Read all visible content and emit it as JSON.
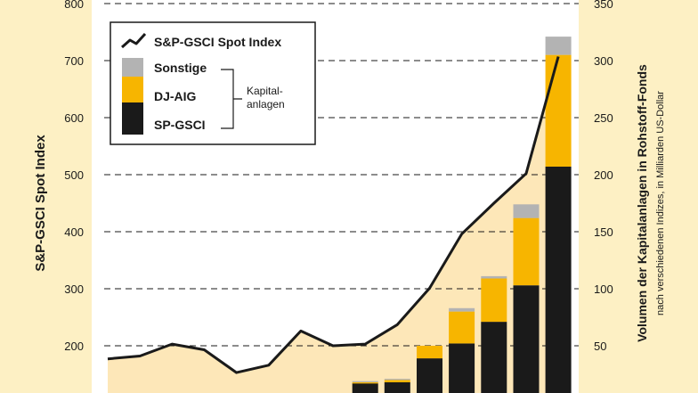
{
  "colors": {
    "page_bg": "#fdf0c4",
    "plot_bg": "#ffffff",
    "area_fill": "#fde7b8",
    "sonstige": "#b3b3b3",
    "dj_aig": "#f7b500",
    "sp_gsci": "#1a1a1a",
    "line": "#1a1a1a"
  },
  "chart_data": {
    "type": "bar",
    "left_axis": {
      "label": "S&P-GSCI Spot Index",
      "ticks": [
        "200",
        "300",
        "400",
        "500",
        "600",
        "700",
        "800"
      ],
      "range": [
        144,
        800
      ]
    },
    "right_axis": {
      "label": "Volumen der Kapitalanlagen in Rohstoff-Fonds",
      "sublabel": "nach verschiedenen Indizes, in Milliarden US-Dollar",
      "ticks": [
        "50",
        "100",
        "150",
        "200",
        "250",
        "300",
        "350"
      ],
      "range": [
        7,
        350
      ]
    },
    "index_series": {
      "name": "S&P-GSCI Spot Index",
      "values": [
        177,
        182,
        203,
        193,
        153,
        166,
        226,
        200,
        203,
        237,
        301,
        396,
        450,
        502,
        707
      ]
    },
    "stacked_bars": {
      "series_names": [
        "SP-GSCI",
        "DJ-AIG",
        "Sonstige"
      ],
      "values": [
        null,
        null,
        null,
        null,
        null,
        null,
        null,
        null,
        {
          "SP-GSCI": 10,
          "DJ-AIG": 1,
          "Sonstige": 1
        },
        {
          "SP-GSCI": 11,
          "DJ-AIG": 2,
          "Sonstige": 1
        },
        {
          "SP-GSCI": 32,
          "DJ-AIG": 11,
          "Sonstige": 0
        },
        {
          "SP-GSCI": 45,
          "DJ-AIG": 28,
          "Sonstige": 3
        },
        {
          "SP-GSCI": 64,
          "DJ-AIG": 38,
          "Sonstige": 2
        },
        {
          "SP-GSCI": 96,
          "DJ-AIG": 59,
          "Sonstige": 12
        },
        {
          "SP-GSCI": 200,
          "DJ-AIG": 98,
          "Sonstige": 16
        }
      ]
    },
    "legend": {
      "position": "top-left",
      "items": [
        {
          "key": "line",
          "label": "S&P-GSCI Spot Index"
        },
        {
          "key": "sonstige",
          "label": "Sonstige"
        },
        {
          "key": "dj_aig",
          "label": "DJ-AIG"
        },
        {
          "key": "sp_gsci",
          "label": "SP-GSCI"
        }
      ],
      "bracket_note": [
        "Kapital-",
        "anlagen"
      ]
    },
    "grid": "dashed horizontal"
  }
}
